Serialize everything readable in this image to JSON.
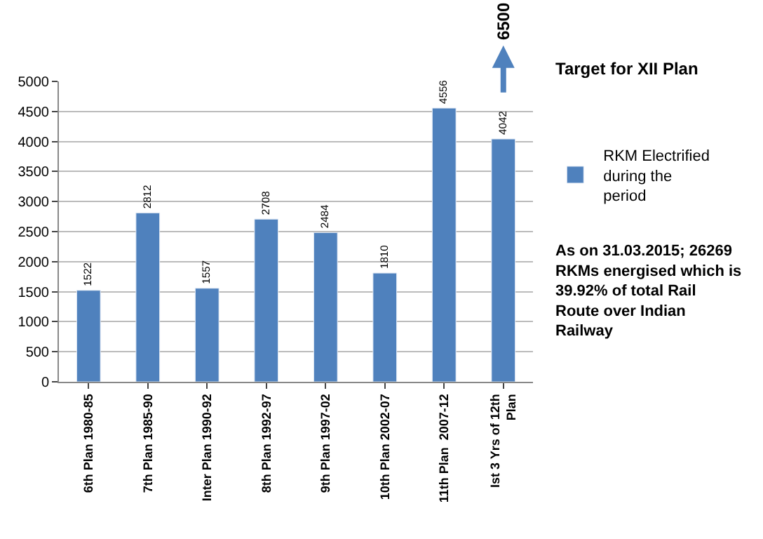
{
  "chart_data": {
    "type": "bar",
    "categories": [
      "6th Plan 1980-85",
      "7th Plan 1985-90",
      "Inter Plan 1990-92",
      "8th Plan 1992-97",
      "9th Plan 1997-02",
      "10th Plan 2002-07",
      "11th Plan  2007-12",
      "Ist 3 Yrs of 12th Plan"
    ],
    "series": [
      {
        "name": "RKM Electrified during the period",
        "color": "#4f81bd",
        "values": [
          1522,
          2812,
          1557,
          2708,
          2484,
          1810,
          4556,
          4042
        ]
      }
    ],
    "ylim": [
      0,
      5000
    ],
    "yticks": [
      0,
      500,
      1000,
      1500,
      2000,
      2500,
      3000,
      3500,
      4000,
      4500,
      5000
    ],
    "grid": "y",
    "legend": "right",
    "data_labels": true,
    "annotations": [
      "6500",
      "Target for XII Plan",
      "As on 31.03.2015; 26269 RKMs energised which is 39.92% of total Rail Route over Indian Railway"
    ]
  }
}
